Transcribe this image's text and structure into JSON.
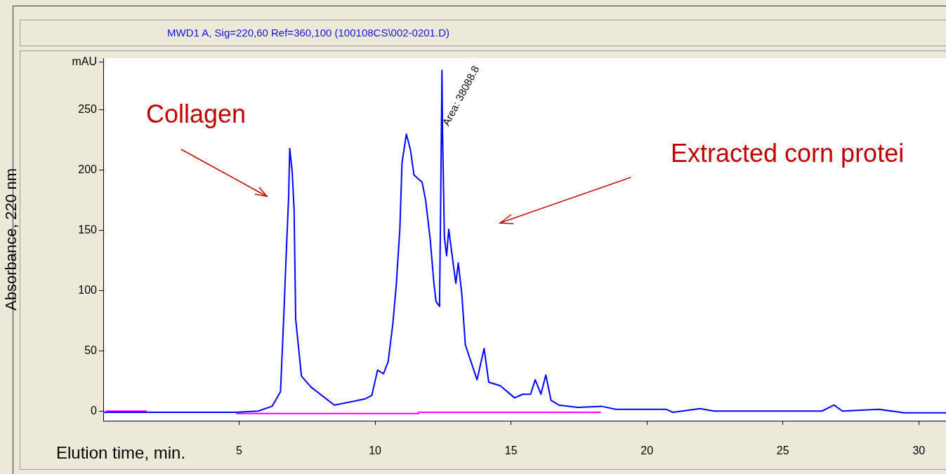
{
  "chart_data": {
    "type": "line",
    "title": "MWD1 A, Sig=220,60 Ref=360,100 (100108CS\\002-0201.D)",
    "xlabel": "Elution time, min.",
    "ylabel": "Absorbance, 220 nm",
    "xlim": [
      0,
      31
    ],
    "xticks": [
      5,
      10,
      15,
      20,
      25,
      30
    ],
    "ylim": [
      -8,
      293
    ],
    "yticks": [
      0,
      50,
      100,
      150,
      200,
      250,
      {
        "value": 290,
        "label": "mAU"
      }
    ],
    "grid": false,
    "legend": false,
    "marker": "none",
    "line_style": "solid",
    "series": [
      {
        "color": "#0000ff",
        "x": [
          0,
          2,
          4.9,
          5.7,
          6.21,
          6.52,
          6.64,
          6.73,
          6.82,
          6.86,
          6.95,
          7.02,
          7.08,
          7.29,
          7.64,
          8.5,
          9.62,
          9.88,
          10.09,
          10.31,
          10.48,
          10.65,
          10.78,
          10.91,
          10.99,
          11.15,
          11.3,
          11.43,
          11.73,
          11.86,
          12.03,
          12.16,
          12.24,
          12.37,
          12.42,
          12.46,
          12.48,
          12.55,
          12.63,
          12.71,
          12.84,
          12.97,
          13.06,
          13.19,
          13.32,
          13.75,
          14.01,
          14.18,
          14.61,
          15.13,
          15.43,
          15.72,
          15.89,
          16.1,
          16.28,
          16.47,
          16.76,
          17.46,
          18.33,
          18.85,
          20.7,
          20.96,
          21.95,
          22.47,
          26.44,
          26.88,
          27.19,
          28.53,
          29.46,
          31
        ],
        "values": [
          -1,
          -1,
          -1,
          0,
          4,
          16,
          78,
          130,
          178,
          218,
          199,
          167,
          76,
          29,
          20,
          5,
          10,
          13,
          34,
          31,
          41,
          72,
          105,
          151,
          206,
          230,
          217,
          196,
          190,
          175,
          142,
          107,
          91,
          87,
          190,
          283,
          233,
          144,
          129,
          151,
          128,
          106,
          123,
          97,
          55,
          26,
          52,
          24,
          21,
          11,
          14,
          14,
          26,
          14,
          30,
          9,
          5,
          3,
          4,
          1.5,
          1.5,
          -1,
          2,
          0,
          0,
          5,
          0,
          1.5,
          -1.5,
          -1.5
        ]
      },
      {
        "color": "#ff00ff",
        "x": [
          0.1,
          1.6,
          1.7,
          4.9,
          11.6,
          11.6,
          18.3
        ],
        "values": [
          0,
          0,
          null,
          -2,
          -2,
          -1,
          -1
        ]
      }
    ],
    "annotations": [
      {
        "text": "Area: 38088.8",
        "x": 12.5,
        "y": 235
      },
      "Collagen",
      "Extracted corn protei"
    ]
  }
}
